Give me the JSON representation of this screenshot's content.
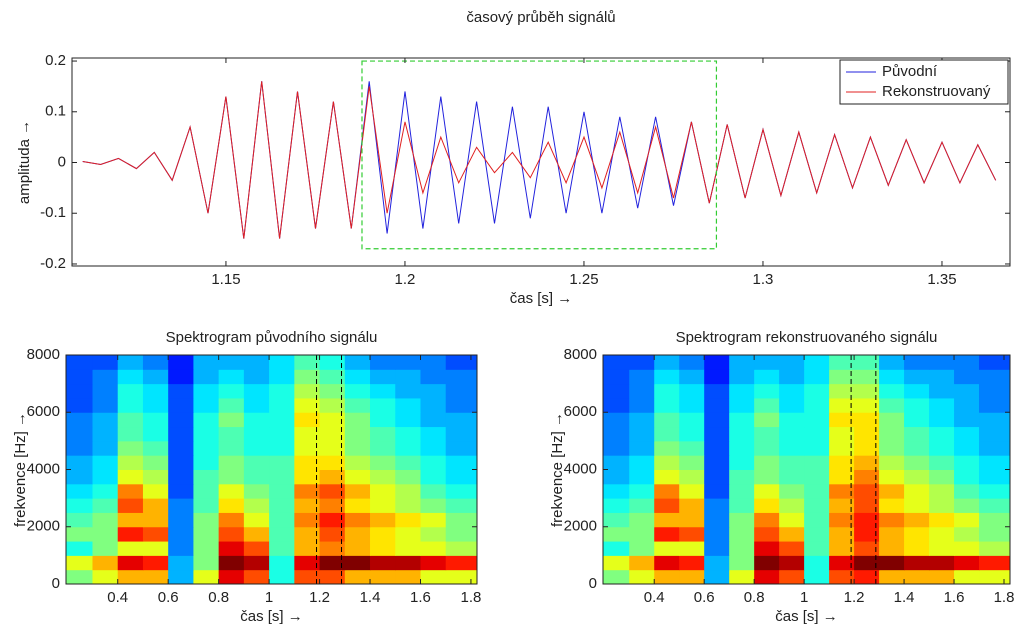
{
  "chart_data": [
    {
      "type": "line",
      "title": "časový průběh signálů",
      "xlabel": "čas [s] →",
      "ylabel": "amplituda →",
      "x": [
        1.11,
        1.115,
        1.12,
        1.125,
        1.13,
        1.135,
        1.14,
        1.145,
        1.15,
        1.155,
        1.16,
        1.165,
        1.17,
        1.175,
        1.18,
        1.185,
        1.19,
        1.195,
        1.2,
        1.205,
        1.21,
        1.215,
        1.22,
        1.225,
        1.23,
        1.235,
        1.24,
        1.245,
        1.25,
        1.255,
        1.26,
        1.265,
        1.27,
        1.275,
        1.28,
        1.285,
        1.29,
        1.295,
        1.3,
        1.305,
        1.31,
        1.315,
        1.32,
        1.325,
        1.33,
        1.335,
        1.34,
        1.345,
        1.35,
        1.355,
        1.36,
        1.365
      ],
      "series": [
        {
          "name": "Původní",
          "color": "#2222dd",
          "values": [
            0.002,
            -0.004,
            0.008,
            -0.012,
            0.02,
            -0.035,
            0.07,
            -0.1,
            0.13,
            -0.15,
            0.16,
            -0.15,
            0.14,
            -0.13,
            0.12,
            -0.13,
            0.16,
            -0.14,
            0.14,
            -0.13,
            0.13,
            -0.12,
            0.12,
            -0.12,
            0.11,
            -0.11,
            0.11,
            -0.1,
            0.1,
            -0.1,
            0.09,
            -0.09,
            0.09,
            -0.085,
            0.08,
            -0.08,
            0.075,
            -0.07,
            0.065,
            -0.065,
            0.06,
            -0.06,
            0.055,
            -0.05,
            0.05,
            -0.045,
            0.045,
            -0.04,
            0.04,
            -0.04,
            0.035,
            -0.035
          ]
        },
        {
          "name": "Rekonstruovaný",
          "color": "#e02020",
          "values": [
            0.002,
            -0.004,
            0.008,
            -0.012,
            0.02,
            -0.035,
            0.07,
            -0.1,
            0.13,
            -0.15,
            0.16,
            -0.15,
            0.14,
            -0.13,
            0.12,
            -0.13,
            0.15,
            -0.1,
            0.08,
            -0.06,
            0.05,
            -0.04,
            0.03,
            -0.02,
            0.02,
            -0.03,
            0.04,
            -0.04,
            0.05,
            -0.05,
            0.06,
            -0.06,
            0.07,
            -0.07,
            0.08,
            -0.08,
            0.075,
            -0.07,
            0.065,
            -0.065,
            0.06,
            -0.06,
            0.055,
            -0.05,
            0.05,
            -0.045,
            0.045,
            -0.04,
            0.04,
            -0.04,
            0.035,
            -0.035
          ]
        }
      ],
      "xlim": [
        1.107,
        1.369
      ],
      "xticks": [
        1.15,
        1.2,
        1.25,
        1.3,
        1.35
      ],
      "ylim": [
        -0.204,
        0.206
      ],
      "yticks": [
        -0.2,
        -0.1,
        0,
        0.1,
        0.2
      ],
      "legend": "top-right",
      "highlight": {
        "x": [
          1.188,
          1.287
        ],
        "y": [
          -0.17,
          0.2
        ],
        "color": "#33cc33"
      }
    },
    {
      "type": "heatmap",
      "title": "Spektrogram původního signálu",
      "xlabel": "čas [s] →",
      "ylabel": "frekvence [Hz] →",
      "colormap": "jet",
      "xbins": [
        0.195,
        0.3,
        0.4,
        0.5,
        0.6,
        0.7,
        0.8,
        0.9,
        1.0,
        1.1,
        1.2,
        1.3,
        1.4,
        1.5,
        1.6,
        1.7,
        1.824
      ],
      "ybins": [
        0,
        500,
        1000,
        1500,
        2000,
        2500,
        3000,
        3500,
        4000,
        4500,
        5000,
        5500,
        6000,
        6500,
        7000,
        7500,
        8000
      ],
      "z": [
        [
          0.5,
          0.6,
          0.7,
          0.7,
          0.3,
          0.6,
          0.9,
          0.8,
          0.4,
          0.8,
          0.8,
          0.7,
          0.7,
          0.7,
          0.6,
          0.6
        ],
        [
          0.6,
          0.7,
          0.9,
          0.85,
          0.3,
          0.5,
          1.0,
          0.95,
          0.4,
          0.9,
          1.0,
          1.0,
          0.95,
          0.95,
          0.9,
          0.85
        ],
        [
          0.4,
          0.5,
          0.6,
          0.6,
          0.25,
          0.5,
          0.9,
          0.8,
          0.45,
          0.7,
          0.75,
          0.7,
          0.65,
          0.6,
          0.6,
          0.55
        ],
        [
          0.5,
          0.5,
          0.85,
          0.8,
          0.25,
          0.5,
          0.8,
          0.7,
          0.45,
          0.7,
          0.8,
          0.7,
          0.65,
          0.6,
          0.55,
          0.5
        ],
        [
          0.45,
          0.5,
          0.7,
          0.7,
          0.25,
          0.5,
          0.75,
          0.6,
          0.45,
          0.75,
          0.85,
          0.75,
          0.7,
          0.65,
          0.6,
          0.5
        ],
        [
          0.4,
          0.45,
          0.8,
          0.7,
          0.25,
          0.45,
          0.65,
          0.55,
          0.45,
          0.7,
          0.75,
          0.65,
          0.6,
          0.55,
          0.5,
          0.45
        ],
        [
          0.35,
          0.4,
          0.75,
          0.6,
          0.2,
          0.45,
          0.6,
          0.5,
          0.45,
          0.75,
          0.8,
          0.7,
          0.6,
          0.55,
          0.45,
          0.4
        ],
        [
          0.3,
          0.35,
          0.6,
          0.55,
          0.2,
          0.45,
          0.5,
          0.45,
          0.45,
          0.65,
          0.7,
          0.6,
          0.55,
          0.5,
          0.4,
          0.35
        ],
        [
          0.3,
          0.35,
          0.55,
          0.5,
          0.2,
          0.4,
          0.5,
          0.45,
          0.45,
          0.65,
          0.65,
          0.55,
          0.5,
          0.45,
          0.4,
          0.35
        ],
        [
          0.25,
          0.3,
          0.5,
          0.45,
          0.2,
          0.4,
          0.45,
          0.4,
          0.4,
          0.6,
          0.6,
          0.5,
          0.45,
          0.4,
          0.35,
          0.3
        ],
        [
          0.25,
          0.3,
          0.45,
          0.4,
          0.2,
          0.4,
          0.45,
          0.4,
          0.4,
          0.6,
          0.6,
          0.5,
          0.45,
          0.4,
          0.35,
          0.3
        ],
        [
          0.25,
          0.3,
          0.45,
          0.4,
          0.2,
          0.4,
          0.5,
          0.4,
          0.4,
          0.65,
          0.6,
          0.5,
          0.4,
          0.35,
          0.3,
          0.3
        ],
        [
          0.2,
          0.25,
          0.4,
          0.35,
          0.2,
          0.35,
          0.45,
          0.35,
          0.4,
          0.6,
          0.55,
          0.45,
          0.4,
          0.35,
          0.3,
          0.25
        ],
        [
          0.2,
          0.25,
          0.4,
          0.35,
          0.2,
          0.35,
          0.4,
          0.35,
          0.4,
          0.55,
          0.5,
          0.4,
          0.35,
          0.3,
          0.3,
          0.25
        ],
        [
          0.2,
          0.25,
          0.35,
          0.3,
          0.15,
          0.3,
          0.35,
          0.3,
          0.35,
          0.5,
          0.45,
          0.35,
          0.3,
          0.3,
          0.25,
          0.25
        ],
        [
          0.2,
          0.2,
          0.3,
          0.25,
          0.15,
          0.3,
          0.3,
          0.3,
          0.35,
          0.45,
          0.4,
          0.3,
          0.25,
          0.25,
          0.25,
          0.2
        ]
      ],
      "xlim": [
        0.195,
        1.824
      ],
      "xticks": [
        0.4,
        0.6,
        0.8,
        1,
        1.2,
        1.4,
        1.6,
        1.8
      ],
      "ylim": [
        0,
        8000
      ],
      "yticks": [
        0,
        2000,
        4000,
        6000,
        8000
      ],
      "highlight": {
        "x": [
          1.188,
          1.287
        ],
        "color": "#000000"
      }
    },
    {
      "type": "heatmap",
      "title": "Spektrogram rekonstruovaného signálu",
      "xlabel": "čas [s] →",
      "ylabel": "frekvence [Hz] →",
      "colormap": "jet",
      "xbins": [
        0.195,
        0.3,
        0.4,
        0.5,
        0.6,
        0.7,
        0.8,
        0.9,
        1.0,
        1.1,
        1.2,
        1.3,
        1.4,
        1.5,
        1.6,
        1.7,
        1.824
      ],
      "ybins": [
        0,
        500,
        1000,
        1500,
        2000,
        2500,
        3000,
        3500,
        4000,
        4500,
        5000,
        5500,
        6000,
        6500,
        7000,
        7500,
        8000
      ],
      "z": [
        [
          0.5,
          0.6,
          0.7,
          0.7,
          0.3,
          0.6,
          0.9,
          0.8,
          0.4,
          0.8,
          0.85,
          0.7,
          0.7,
          0.7,
          0.6,
          0.6
        ],
        [
          0.6,
          0.7,
          0.9,
          0.85,
          0.3,
          0.5,
          1.0,
          0.95,
          0.4,
          0.9,
          1.0,
          1.0,
          0.95,
          0.95,
          0.9,
          0.85
        ],
        [
          0.4,
          0.5,
          0.6,
          0.6,
          0.25,
          0.5,
          0.9,
          0.8,
          0.45,
          0.7,
          0.8,
          0.7,
          0.65,
          0.6,
          0.6,
          0.55
        ],
        [
          0.5,
          0.5,
          0.85,
          0.8,
          0.25,
          0.5,
          0.8,
          0.7,
          0.45,
          0.7,
          0.85,
          0.7,
          0.65,
          0.6,
          0.55,
          0.5
        ],
        [
          0.45,
          0.5,
          0.7,
          0.7,
          0.25,
          0.5,
          0.75,
          0.6,
          0.45,
          0.75,
          0.85,
          0.75,
          0.7,
          0.65,
          0.6,
          0.5
        ],
        [
          0.4,
          0.45,
          0.8,
          0.7,
          0.25,
          0.45,
          0.65,
          0.55,
          0.45,
          0.7,
          0.8,
          0.65,
          0.6,
          0.55,
          0.5,
          0.45
        ],
        [
          0.35,
          0.4,
          0.75,
          0.6,
          0.2,
          0.45,
          0.6,
          0.5,
          0.45,
          0.75,
          0.8,
          0.7,
          0.6,
          0.55,
          0.45,
          0.4
        ],
        [
          0.3,
          0.35,
          0.6,
          0.55,
          0.2,
          0.45,
          0.5,
          0.45,
          0.45,
          0.65,
          0.75,
          0.6,
          0.55,
          0.5,
          0.4,
          0.35
        ],
        [
          0.3,
          0.35,
          0.55,
          0.5,
          0.2,
          0.4,
          0.5,
          0.45,
          0.45,
          0.65,
          0.7,
          0.55,
          0.5,
          0.45,
          0.4,
          0.35
        ],
        [
          0.25,
          0.3,
          0.5,
          0.45,
          0.2,
          0.4,
          0.45,
          0.4,
          0.4,
          0.6,
          0.65,
          0.5,
          0.45,
          0.4,
          0.35,
          0.3
        ],
        [
          0.25,
          0.3,
          0.45,
          0.4,
          0.2,
          0.4,
          0.45,
          0.4,
          0.4,
          0.6,
          0.65,
          0.5,
          0.45,
          0.4,
          0.35,
          0.3
        ],
        [
          0.25,
          0.3,
          0.45,
          0.4,
          0.2,
          0.4,
          0.5,
          0.4,
          0.4,
          0.65,
          0.65,
          0.5,
          0.4,
          0.35,
          0.3,
          0.3
        ],
        [
          0.2,
          0.25,
          0.4,
          0.35,
          0.2,
          0.35,
          0.45,
          0.35,
          0.4,
          0.6,
          0.6,
          0.45,
          0.4,
          0.35,
          0.3,
          0.25
        ],
        [
          0.2,
          0.25,
          0.4,
          0.35,
          0.2,
          0.35,
          0.4,
          0.35,
          0.4,
          0.55,
          0.55,
          0.4,
          0.35,
          0.3,
          0.3,
          0.25
        ],
        [
          0.2,
          0.25,
          0.35,
          0.3,
          0.15,
          0.3,
          0.35,
          0.3,
          0.35,
          0.5,
          0.5,
          0.35,
          0.3,
          0.3,
          0.25,
          0.25
        ],
        [
          0.2,
          0.2,
          0.3,
          0.25,
          0.15,
          0.3,
          0.3,
          0.3,
          0.35,
          0.45,
          0.45,
          0.3,
          0.25,
          0.25,
          0.25,
          0.2
        ]
      ],
      "xlim": [
        0.195,
        1.824
      ],
      "xticks": [
        0.4,
        0.6,
        0.8,
        1,
        1.2,
        1.4,
        1.6,
        1.8
      ],
      "ylim": [
        0,
        8000
      ],
      "yticks": [
        0,
        2000,
        4000,
        6000,
        8000
      ],
      "highlight": {
        "x": [
          1.188,
          1.287
        ],
        "color": "#000000"
      }
    }
  ]
}
